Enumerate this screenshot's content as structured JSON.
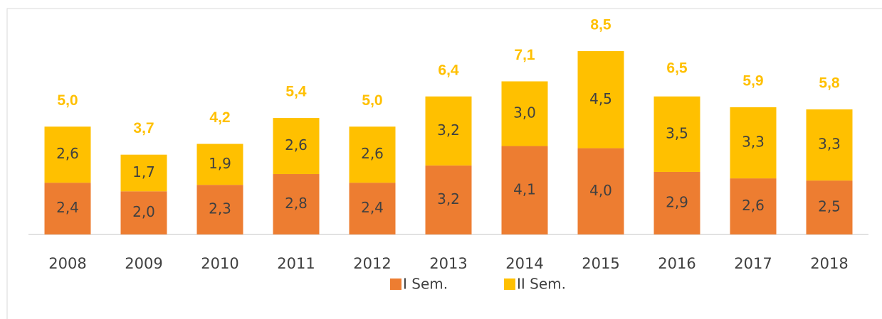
{
  "chart_data": {
    "type": "stacked_bar",
    "categories": [
      "2008",
      "2009",
      "2010",
      "2011",
      "2012",
      "2013",
      "2014",
      "2015",
      "2016",
      "2017",
      "2018"
    ],
    "series": [
      {
        "name": "I Sem.",
        "color": "#ED7D31",
        "values": [
          2.4,
          2.0,
          2.3,
          2.8,
          2.4,
          3.2,
          4.1,
          4.0,
          2.9,
          2.6,
          2.5
        ],
        "value_labels": [
          "2,4",
          "2,0",
          "2,3",
          "2,8",
          "2,4",
          "3,2",
          "4,1",
          "4,0",
          "2,9",
          "2,6",
          "2,5"
        ]
      },
      {
        "name": "II Sem.",
        "color": "#FFC000",
        "values": [
          2.6,
          1.7,
          1.9,
          2.6,
          2.6,
          3.2,
          3.0,
          4.5,
          3.5,
          3.3,
          3.3
        ],
        "value_labels": [
          "2,6",
          "1,7",
          "1,9",
          "2,6",
          "2,6",
          "3,2",
          "3,0",
          "4,5",
          "3,5",
          "3,3",
          "3,3"
        ]
      }
    ],
    "totals": [
      5.0,
      3.7,
      4.2,
      5.4,
      5.0,
      6.4,
      7.1,
      8.5,
      6.5,
      5.9,
      5.8
    ],
    "total_labels": [
      "5,0",
      "3,7",
      "4,2",
      "5,4",
      "5,0",
      "6,4",
      "7,1",
      "8,5",
      "6,5",
      "5,9",
      "5,8"
    ]
  }
}
